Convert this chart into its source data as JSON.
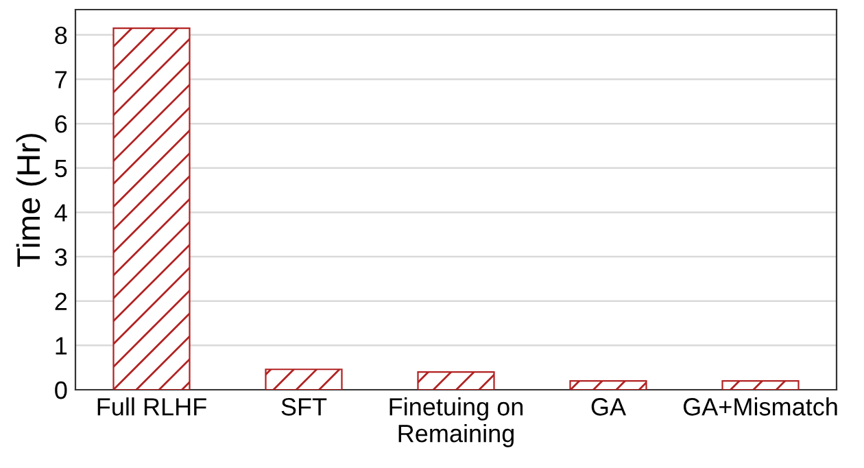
{
  "chart_data": {
    "type": "bar",
    "ylabel": "Time (Hr)",
    "categories": [
      "Full RLHF",
      "SFT",
      "Finetuing on\nRemaining",
      "GA",
      "GA+Mismatch"
    ],
    "values": [
      8.15,
      0.46,
      0.4,
      0.2,
      0.2
    ],
    "color": "#b22222",
    "ylim": [
      0,
      8.57
    ],
    "yticks": [
      0,
      1,
      2,
      3,
      4,
      5,
      6,
      7,
      8
    ],
    "grid": "y"
  }
}
